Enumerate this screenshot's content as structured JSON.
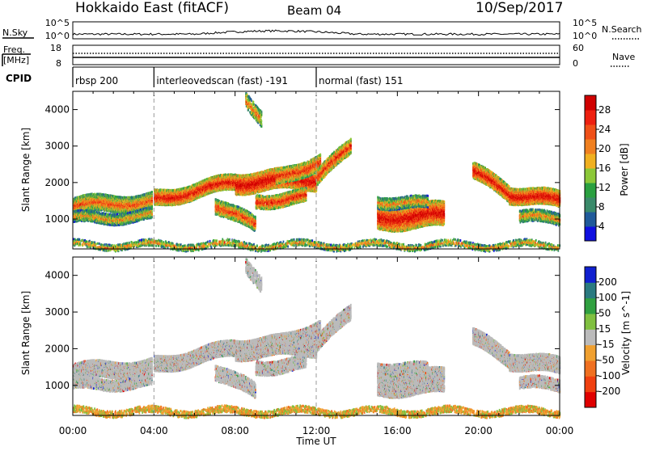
{
  "header": {
    "station": "Hokkaido East (fitACF)",
    "beam": "Beam 04",
    "date": "10/Sep/2017"
  },
  "top_panels": {
    "nsky_label": "N.Sky",
    "nsky_ticks_left": [
      "10^5",
      "10^0"
    ],
    "nsky_ticks_right": [
      "10^5",
      "10^0"
    ],
    "nsearch_label": "N.Search",
    "freq_label_1": "Freq.",
    "freq_label_2": "[MHz]",
    "freq_ticks": [
      "18",
      "8"
    ],
    "nave_ticks": [
      "60",
      "0"
    ],
    "nave_label": "Nave",
    "cpid_label": "CPID",
    "cpid_segments": [
      {
        "label": "rbsp 200",
        "start_h": 0
      },
      {
        "label": "interleovedscan (fast) -191",
        "start_h": 4
      },
      {
        "label": "normal (fast) 151",
        "start_h": 12
      }
    ]
  },
  "colors": {
    "power_scale": [
      "#1010e0",
      "#205a9a",
      "#3a8a6a",
      "#2aa040",
      "#8cc838",
      "#f0b020",
      "#f08020",
      "#f05018",
      "#ee2010",
      "#d00000"
    ],
    "velocity_scale": [
      "#e00000",
      "#f04010",
      "#f07020",
      "#f0a030",
      "#bbbbbb",
      "#80c040",
      "#30a040",
      "#2a7a80",
      "#1020d0"
    ],
    "ground_scatter": "#bbbbbb"
  },
  "chart_data": [
    {
      "type": "heatmap",
      "name_label": "Power",
      "ylabel": "Slant Range [km]",
      "xlabel": "Time UT",
      "x_ticks": [
        "00:00",
        "04:00",
        "08:00",
        "12:00",
        "16:00",
        "20:00",
        "00:00"
      ],
      "x_range_hours": [
        0,
        24
      ],
      "y_ticks": [
        "1000",
        "2000",
        "3000",
        "4000"
      ],
      "y_range_km": [
        180,
        4500
      ],
      "colorbar_label": "Power [dB]",
      "colorbar_ticks": [
        "28",
        "24",
        "20",
        "16",
        "12",
        "8",
        "4"
      ],
      "colorbar_range": [
        0,
        30
      ]
    },
    {
      "type": "heatmap",
      "name_label": "Velocity",
      "ylabel": "Slant Range [km]",
      "xlabel": "Time UT",
      "x_ticks": [
        "00:00",
        "04:00",
        "08:00",
        "12:00",
        "16:00",
        "20:00",
        "00:00"
      ],
      "x_range_hours": [
        0,
        24
      ],
      "y_ticks": [
        "1000",
        "2000",
        "3000",
        "4000"
      ],
      "y_range_km": [
        180,
        4500
      ],
      "colorbar_label": "Velocity [m s^-1]",
      "colorbar_ticks": [
        "200",
        "100",
        "50",
        "15",
        "-15",
        "-50",
        "-100",
        "-200"
      ],
      "colorbar_range": [
        -250,
        250
      ]
    }
  ],
  "xlabel": "Time UT"
}
